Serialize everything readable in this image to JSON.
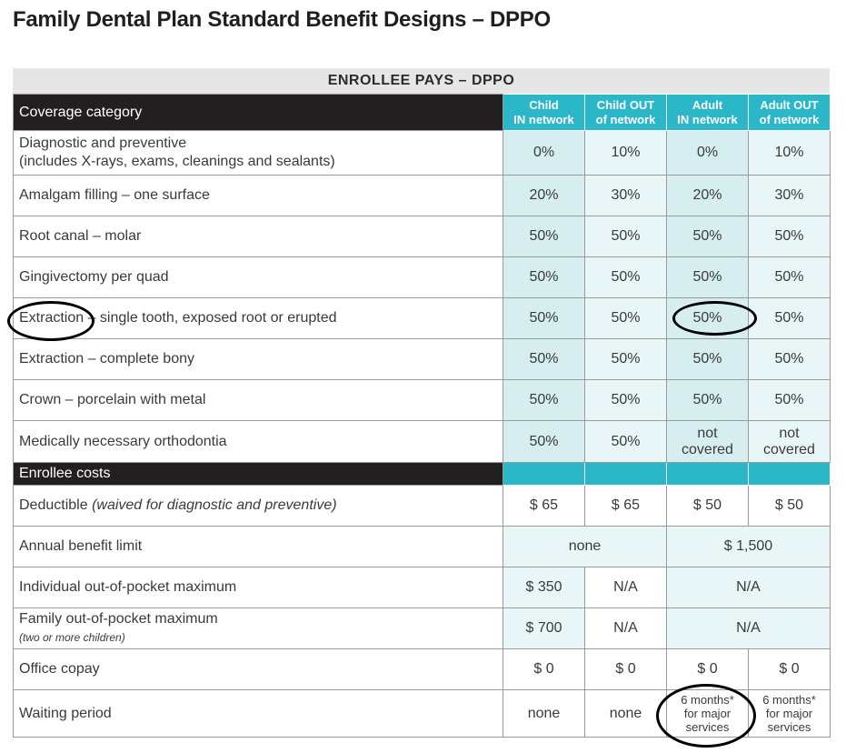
{
  "title": "Family Dental Plan Standard Benefit Designs – DPPO",
  "caption": "ENROLLEE PAYS – DPPO",
  "header": {
    "label": "Coverage category",
    "columns": [
      {
        "line1": "Child",
        "line2": "IN network"
      },
      {
        "line1": "Child OUT",
        "line2": "of network"
      },
      {
        "line1": "Adult",
        "line2": "IN network"
      },
      {
        "line1": "Adult OUT",
        "line2": "of network"
      }
    ]
  },
  "coverage_rows": [
    {
      "label": "Diagnostic and preventive",
      "sublabel": "(includes X-rays, exams, cleanings and sealants)",
      "values": [
        "0%",
        "10%",
        "0%",
        "10%"
      ]
    },
    {
      "label": "Amalgam filling – one surface",
      "values": [
        "20%",
        "30%",
        "20%",
        "30%"
      ]
    },
    {
      "label": "Root canal – molar",
      "values": [
        "50%",
        "50%",
        "50%",
        "50%"
      ]
    },
    {
      "label": "Gingivectomy per quad",
      "values": [
        "50%",
        "50%",
        "50%",
        "50%"
      ]
    },
    {
      "label": "Extraction – single tooth, exposed root or erupted",
      "values": [
        "50%",
        "50%",
        "50%",
        "50%"
      ]
    },
    {
      "label": "Extraction – complete bony",
      "values": [
        "50%",
        "50%",
        "50%",
        "50%"
      ]
    },
    {
      "label": "Crown – porcelain with metal",
      "values": [
        "50%",
        "50%",
        "50%",
        "50%"
      ]
    },
    {
      "label": "Medically necessary orthodontia",
      "values": [
        "50%",
        "50%",
        "not covered",
        "not covered"
      ]
    }
  ],
  "section_label": "Enrollee costs",
  "costs": {
    "deductible": {
      "label": "Deductible",
      "note": "(waived for diagnostic and preventive)",
      "values": [
        "$ 65",
        "$ 65",
        "$ 50",
        "$ 50"
      ]
    },
    "annual_limit": {
      "label": "Annual benefit limit",
      "child": "none",
      "adult": "$ 1,500"
    },
    "individual_oop": {
      "label": "Individual out-of-pocket maximum",
      "child_in": "$ 350",
      "child_out": "N/A",
      "adult": "N/A"
    },
    "family_oop": {
      "label": "Family out-of-pocket maximum",
      "sublabel": "(two or more children)",
      "child_in": "$ 700",
      "child_out": "N/A",
      "adult": "N/A"
    },
    "copay": {
      "label": "Office copay",
      "values": [
        "$ 0",
        "$ 0",
        "$ 0",
        "$ 0"
      ]
    },
    "waiting": {
      "label": "Waiting period",
      "values": [
        "none",
        "none",
        "6 months* for major services",
        "6 months* for major services"
      ]
    }
  },
  "colors": {
    "header_dark": "#231f20",
    "accent_cyan": "#2ab7c8",
    "cell_cyan": "#d7eef1",
    "annotation": "#000000"
  }
}
